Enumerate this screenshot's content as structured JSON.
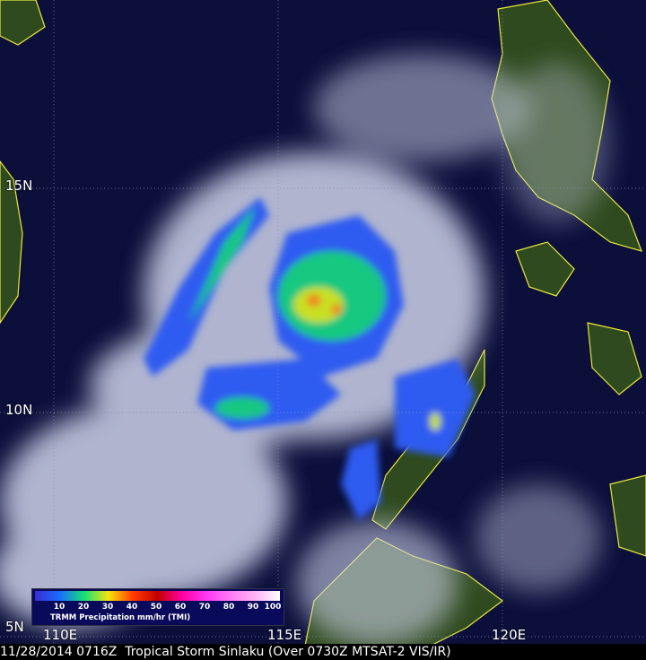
{
  "caption": "11/28/2014 0716Z  Tropical Storm Sinlaku (Over 0730Z MTSAT-2 VIS/IR)",
  "latitude_labels": [
    "15N",
    "10N",
    "5N"
  ],
  "longitude_labels": [
    "110E",
    "115E",
    "120E"
  ],
  "legend": {
    "title": "TRMM Precipitation mm/hr (TMI)",
    "ticks": [
      "10",
      "20",
      "30",
      "40",
      "50",
      "60",
      "70",
      "80",
      "90",
      "100"
    ],
    "colors": [
      "#1a6cff",
      "#14e07a",
      "#f5e40c",
      "#ff3c00",
      "#c40000",
      "#ff00a0",
      "#ff38f2",
      "#ff7cf5",
      "#ffb5f5",
      "#ffffff"
    ]
  },
  "colors": {
    "ocean": "#0b0f3a",
    "land": "#2f4a1e",
    "coastline": "#e8e83a",
    "cloud": "#d8dcf0"
  }
}
